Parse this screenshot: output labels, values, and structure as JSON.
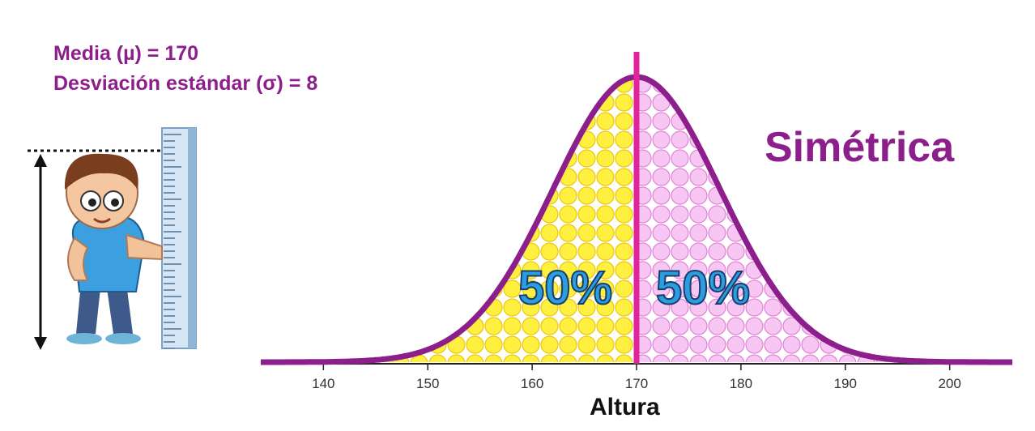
{
  "stats": {
    "mean_label": "Media (µ) = 170",
    "std_label": "Desviación estándar (σ) = 8"
  },
  "title": "Simétrica",
  "left_percent": "50%",
  "right_percent": "50%",
  "chart_data": {
    "type": "area",
    "distribution": "normal",
    "mean": 170,
    "std": 8,
    "xlabel": "Altura",
    "xlim": [
      134,
      206
    ],
    "xticks": [
      140,
      150,
      160,
      170,
      180,
      190,
      200
    ],
    "areas": [
      {
        "range": [
          134,
          170
        ],
        "percent": 50,
        "color": "#ffef3f"
      },
      {
        "range": [
          170,
          206
        ],
        "percent": 50,
        "color": "#f7c6f3"
      }
    ],
    "mean_line": 170
  },
  "colors": {
    "curve": "#8c1f8c",
    "mean_line": "#e0249b",
    "title": "#8c1f8c",
    "percent_text": "#2b9ee0"
  },
  "icons": [
    "child-measuring-height-icon",
    "ruler-icon",
    "height-arrow-icon"
  ]
}
